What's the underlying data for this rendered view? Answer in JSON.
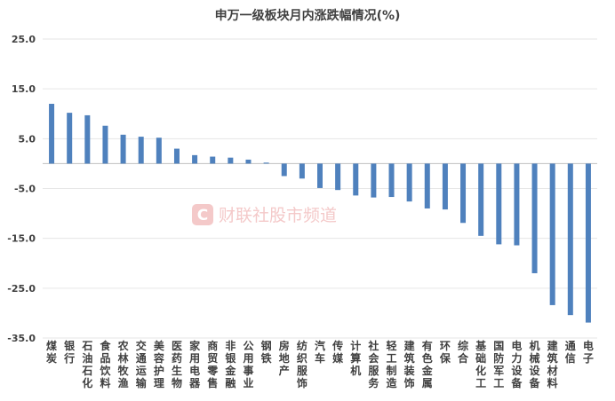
{
  "chart_data": {
    "type": "bar",
    "title": "申万一级板块月内涨跌幅情况(%)",
    "categories": [
      "煤炭",
      "银行",
      "石油石化",
      "食品饮料",
      "农林牧渔",
      "交通运输",
      "美容护理",
      "医药生物",
      "家用电器",
      "商贸零售",
      "非银金融",
      "公用事业",
      "钢铁",
      "房地产",
      "纺织服饰",
      "汽车",
      "传媒",
      "计算机",
      "社会服务",
      "轻工制造",
      "建筑装饰",
      "有色金属",
      "环保",
      "综合",
      "基础化工",
      "国防军工",
      "电力设备",
      "机械设备",
      "建筑材料",
      "通信",
      "电子"
    ],
    "values": [
      12.0,
      10.2,
      9.7,
      7.6,
      5.8,
      5.4,
      5.2,
      3.0,
      1.7,
      1.4,
      1.2,
      0.8,
      0.2,
      -2.5,
      -3.0,
      -4.9,
      -5.3,
      -6.4,
      -6.8,
      -6.7,
      -7.6,
      -9.0,
      -9.2,
      -11.9,
      -14.5,
      -16.2,
      -16.4,
      -22.0,
      -28.4,
      -30.4,
      -31.9
    ],
    "ylim": [
      -35,
      25
    ],
    "yticks": [
      "25.0",
      "15.0",
      "5.0",
      "-5.0",
      "-15.0",
      "-25.0",
      "-35.0"
    ],
    "ytick_values": [
      25,
      15,
      5,
      -5,
      -15,
      -25,
      -35
    ],
    "grid": true,
    "bar_color": "#4f81bd",
    "xlabel": "",
    "ylabel": ""
  },
  "watermark": {
    "text": "财联社股市频道",
    "logo_glyph": "C"
  }
}
